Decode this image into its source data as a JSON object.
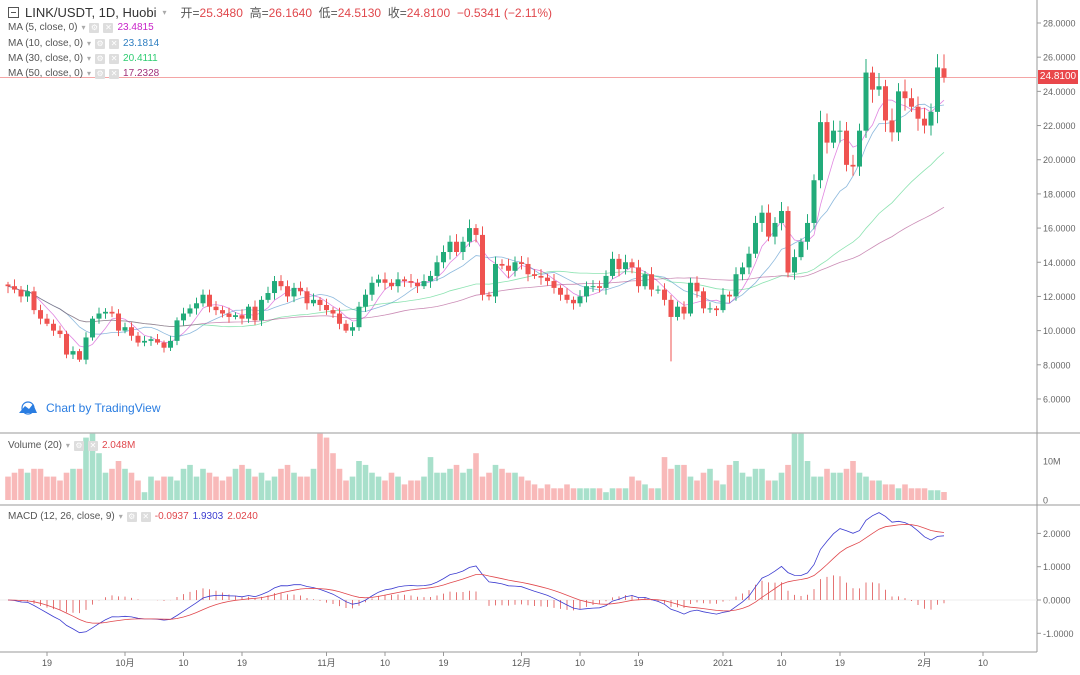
{
  "header": {
    "symbol": "LINK/USDT, 1D, Huobi",
    "open_label": "开=",
    "open": "25.3480",
    "high_label": "高=",
    "high": "26.1640",
    "low_label": "低=",
    "low": "24.5130",
    "close_label": "收=",
    "close": "24.8100",
    "change": "−0.5341 (−2.11%)"
  },
  "indicators": [
    {
      "label": "MA (5, close, 0)",
      "value": "23.4815",
      "color": "#c822c8",
      "period": 5
    },
    {
      "label": "MA (10, close, 0)",
      "value": "23.1814",
      "color": "#2f7fc1",
      "period": 10
    },
    {
      "label": "MA (30, close, 0)",
      "value": "20.4111",
      "color": "#2ecc71",
      "period": 30
    },
    {
      "label": "MA (50, close, 0)",
      "value": "17.2328",
      "color": "#a0307a",
      "period": 50
    }
  ],
  "volume_legend": {
    "label": "Volume (20)",
    "value": "2.048M"
  },
  "macd_legend": {
    "label": "MACD (12, 26, close, 9)",
    "hist": "-0.0937",
    "macd": "1.9303",
    "signal": "2.0240"
  },
  "watermark": "Chart by TradingView",
  "last_price_tag": "24.8100",
  "colors": {
    "up": "#22ab7a",
    "down": "#ef5350",
    "vol_up": "#a8e0cb",
    "vol_down": "#f8b9b9",
    "macd": "#3b3bd0",
    "signal": "#e0474c",
    "hist": "#e57373"
  },
  "chart_data": {
    "type": "candlestick",
    "title": "LINK/USDT, 1D, Huobi",
    "price_axis": {
      "ticks": [
        "28.0000",
        "26.0000",
        "24.0000",
        "22.0000",
        "20.0000",
        "18.0000",
        "16.0000",
        "14.0000",
        "12.0000",
        "10.0000",
        "8.0000",
        "6.0000"
      ],
      "range": [
        4.4,
        29.3
      ]
    },
    "volume_axis": {
      "ticks": [
        "10M",
        "0"
      ]
    },
    "macd_axis": {
      "ticks": [
        "2.0000",
        "1.0000",
        "0.0000",
        "-1.0000"
      ]
    },
    "x_ticks": [
      {
        "label": "19",
        "index": 6
      },
      {
        "label": "10月",
        "index": 18
      },
      {
        "label": "10",
        "index": 27
      },
      {
        "label": "19",
        "index": 36
      },
      {
        "label": "11月",
        "index": 49
      },
      {
        "label": "10",
        "index": 58
      },
      {
        "label": "19",
        "index": 67
      },
      {
        "label": "12月",
        "index": 79
      },
      {
        "label": "10",
        "index": 88
      },
      {
        "label": "19",
        "index": 97
      },
      {
        "label": "2021",
        "index": 110
      },
      {
        "label": "10",
        "index": 119
      },
      {
        "label": "19",
        "index": 128
      },
      {
        "label": "2月",
        "index": 141
      },
      {
        "label": "10",
        "index": 150
      }
    ],
    "first_open": 12.7,
    "last_open": 25.348,
    "close": [
      12.6,
      12.4,
      12.0,
      12.3,
      11.2,
      10.7,
      10.4,
      10.0,
      9.8,
      8.6,
      8.8,
      8.3,
      9.6,
      10.7,
      11.0,
      11.1,
      11.0,
      10.0,
      10.2,
      9.7,
      9.3,
      9.4,
      9.5,
      9.3,
      9.0,
      9.4,
      10.6,
      11.0,
      11.3,
      11.6,
      12.1,
      11.4,
      11.2,
      11.0,
      10.8,
      10.9,
      10.7,
      11.4,
      10.6,
      11.8,
      12.2,
      12.9,
      12.6,
      12.0,
      12.5,
      12.3,
      11.6,
      11.8,
      11.5,
      11.2,
      11.0,
      10.4,
      10.0,
      10.2,
      11.4,
      12.1,
      12.8,
      13.0,
      12.8,
      12.6,
      13.0,
      12.9,
      12.8,
      12.6,
      12.9,
      13.2,
      14.0,
      14.6,
      15.2,
      14.6,
      15.2,
      16.0,
      15.6,
      12.1,
      12.0,
      13.9,
      13.8,
      13.5,
      14.0,
      13.9,
      13.3,
      13.2,
      13.1,
      12.9,
      12.5,
      12.1,
      11.8,
      11.6,
      12.0,
      12.6,
      12.6,
      12.5,
      13.2,
      14.2,
      13.6,
      14.0,
      13.7,
      12.6,
      13.3,
      12.4,
      12.4,
      11.8,
      10.8,
      11.4,
      11.0,
      12.8,
      12.3,
      11.3,
      11.3,
      11.2,
      12.1,
      12.0,
      13.3,
      13.7,
      14.5,
      16.3,
      16.9,
      15.5,
      16.3,
      17.0,
      13.4,
      14.3,
      15.2,
      16.3,
      18.8,
      22.2,
      21.0,
      21.7,
      21.7,
      19.7,
      19.6,
      21.7,
      25.1,
      24.1,
      24.3,
      22.3,
      21.6,
      24.0,
      23.6,
      23.1,
      22.4,
      22.0,
      22.8,
      25.4,
      24.81
    ],
    "last_high": 26.164,
    "last_low": 24.513,
    "volume_millions": [
      6,
      7,
      8,
      7,
      8,
      8,
      6,
      6,
      5,
      7,
      8,
      8,
      16,
      17,
      12,
      7,
      8,
      10,
      8,
      7,
      5,
      2,
      6,
      5,
      6,
      6,
      5,
      8,
      9,
      6,
      8,
      7,
      6,
      5,
      6,
      8,
      9,
      8,
      6,
      7,
      5,
      6,
      8,
      9,
      7,
      6,
      6,
      8,
      17,
      16,
      12,
      8,
      5,
      6,
      10,
      9,
      7,
      6,
      5,
      7,
      6,
      4,
      5,
      5,
      6,
      11,
      7,
      7,
      8,
      9,
      7,
      8,
      12,
      6,
      7,
      9,
      8,
      7,
      7,
      6,
      5,
      4,
      3,
      4,
      3,
      3,
      4,
      3,
      3,
      3,
      3,
      3,
      2,
      3,
      3,
      3,
      6,
      5,
      4,
      3,
      3,
      11,
      8,
      9,
      9,
      6,
      5,
      7,
      8,
      5,
      4,
      9,
      10,
      7,
      6,
      8,
      8,
      5,
      5,
      7,
      9,
      17,
      17,
      10,
      6,
      6,
      8,
      7,
      7,
      8,
      10,
      7,
      6,
      5,
      5,
      4,
      4,
      3,
      4,
      3,
      3,
      3,
      2.5,
      2.5,
      2.048
    ]
  }
}
